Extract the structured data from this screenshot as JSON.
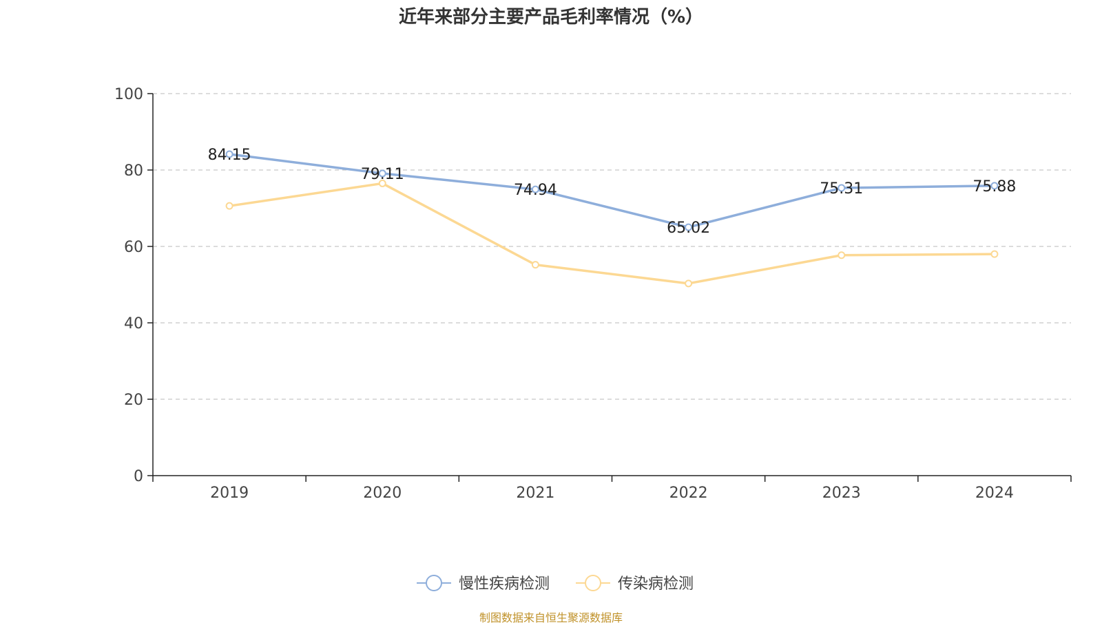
{
  "chart_data": {
    "type": "line",
    "title": "近年来部分主要产品毛利率情况（%）",
    "categories": [
      "2019",
      "2020",
      "2021",
      "2022",
      "2023",
      "2024"
    ],
    "ylim": [
      0,
      100
    ],
    "yticks": [
      0,
      20,
      40,
      60,
      80,
      100
    ],
    "grid": true,
    "legend_position": "bottom",
    "series": [
      {
        "name": "慢性疾病检测",
        "color": "#8eaedb",
        "values": [
          84.15,
          79.11,
          74.94,
          65.02,
          75.31,
          75.88
        ],
        "labels": [
          "84.15",
          "79.11",
          "74.94",
          "65.02",
          "75.31",
          "75.88"
        ]
      },
      {
        "name": "传染病检测",
        "color": "#fcd893",
        "values": [
          70.6,
          76.5,
          55.2,
          50.3,
          57.7,
          58.0
        ],
        "labels": []
      }
    ]
  },
  "footer": {
    "source": "制图数据来自恒生聚源数据库"
  }
}
